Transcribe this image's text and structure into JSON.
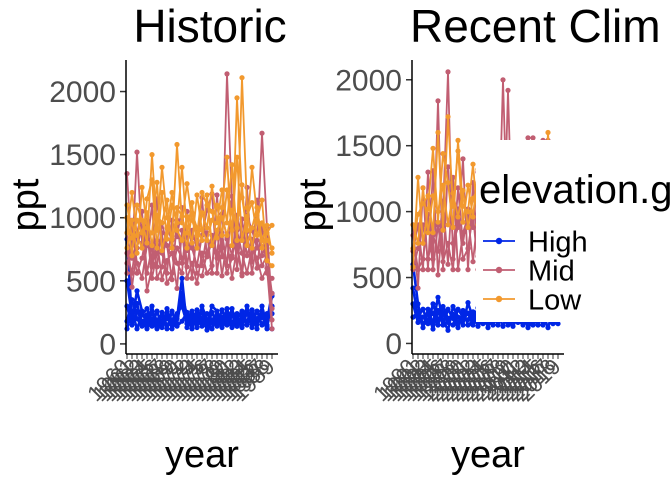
{
  "chart_data": [
    {
      "type": "line",
      "title": "Historic",
      "xlabel": "year",
      "ylabel": "ppt",
      "ylim": [
        -80,
        2250
      ],
      "yticks": [
        0,
        500,
        1000,
        1500,
        2000
      ],
      "x_start": 1960,
      "x_end": 1989,
      "x_tick_step": 1,
      "series": [
        {
          "group": "High",
          "values": [
            830,
            180,
            420,
            260,
            150,
            300,
            120,
            180,
            240,
            120,
            200,
            520,
            130,
            180,
            160,
            260,
            110,
            170,
            200,
            130,
            230,
            170,
            240,
            130,
            250,
            130,
            200,
            260,
            150,
            380
          ]
        },
        {
          "group": "High",
          "values": [
            500,
            220,
            320,
            160,
            230,
            140,
            260,
            140,
            200,
            180,
            160,
            400,
            220,
            120,
            230,
            180,
            140,
            250,
            160,
            210,
            150,
            280,
            140,
            190,
            260,
            190,
            160,
            210,
            180,
            400
          ]
        },
        {
          "group": "High",
          "values": [
            300,
            150,
            260,
            180,
            120,
            200,
            160,
            220,
            150,
            190,
            240,
            300,
            160,
            220,
            130,
            300,
            190,
            120,
            230,
            150,
            190,
            130,
            200,
            260,
            150,
            230,
            120,
            300,
            140,
            300
          ]
        },
        {
          "group": "High",
          "values": [
            180,
            350,
            200,
            140,
            190,
            240,
            190,
            130,
            280,
            150,
            220,
            350,
            190,
            260,
            190,
            140,
            240,
            190,
            140,
            270,
            160,
            220,
            180,
            150,
            300,
            160,
            260,
            150,
            240,
            240
          ]
        },
        {
          "group": "High",
          "values": [
            120,
            260,
            120,
            230,
            280,
            160,
            130,
            250,
            120,
            260,
            140,
            180,
            250,
            150,
            270,
            200,
            160,
            300,
            260,
            170,
            280,
            160,
            140,
            220,
            180,
            270,
            190,
            230,
            120,
            120
          ]
        },
        {
          "group": "Mid",
          "values": [
            1350,
            680,
            1520,
            800,
            980,
            640,
            1150,
            720,
            560,
            980,
            850,
            1080,
            610,
            900,
            760,
            1160,
            690,
            810,
            720,
            1030,
            840,
            700,
            1020,
            850,
            1020,
            900,
            760,
            1670,
            920,
            280
          ]
        },
        {
          "group": "Mid",
          "values": [
            720,
            560,
            880,
            1050,
            560,
            770,
            610,
            960,
            780,
            510,
            980,
            640,
            880,
            520,
            900,
            620,
            880,
            560,
            1180,
            690,
            2140,
            1120,
            790,
            560,
            1240,
            650,
            1140,
            700,
            810,
            190
          ]
        },
        {
          "group": "Mid",
          "values": [
            560,
            940,
            640,
            520,
            780,
            1100,
            520,
            610,
            920,
            820,
            640,
            560,
            1050,
            760,
            620,
            860,
            1060,
            1190,
            560,
            880,
            620,
            1170,
            590,
            990,
            700,
            830,
            600,
            940,
            560,
            520
          ]
        },
        {
          "group": "Mid",
          "values": [
            880,
            450,
            760,
            930,
            420,
            610,
            820,
            510,
            660,
            720,
            440,
            900,
            520,
            640,
            480,
            720,
            560,
            620,
            900,
            540,
            830,
            520,
            760,
            540,
            890,
            560,
            820,
            620,
            700,
            400
          ]
        },
        {
          "group": "Mid",
          "values": [
            640,
            780,
            560,
            680,
            900,
            520,
            720,
            880,
            480,
            560,
            760,
            680,
            740,
            840,
            560,
            540,
            720,
            860,
            680,
            760,
            560,
            680,
            900,
            720,
            560,
            760,
            680,
            520,
            600,
            120
          ]
        },
        {
          "group": "Low",
          "values": [
            1000,
            700,
            1100,
            980,
            800,
            1500,
            900,
            1400,
            1000,
            830,
            1580,
            960,
            1270,
            980,
            860,
            1200,
            1100,
            1050,
            840,
            1080,
            1480,
            780,
            1950,
            1160,
            900,
            1400,
            1020,
            760,
            880,
            940
          ]
        },
        {
          "group": "Low",
          "values": [
            880,
            1200,
            860,
            760,
            1150,
            1300,
            760,
            1200,
            830,
            1100,
            960,
            1400,
            880,
            1120,
            760,
            1040,
            920,
            1250,
            960,
            1220,
            960,
            1420,
            820,
            2110,
            1080,
            760,
            980,
            1140,
            660,
            620
          ]
        },
        {
          "group": "Low",
          "values": [
            760,
            980,
            720,
            1240,
            920,
            880,
            1280,
            740,
            920,
            1200,
            900,
            820,
            1010,
            800,
            1180,
            900,
            820,
            980,
            1100,
            860,
            1220,
            900,
            1480,
            820,
            1010,
            1120,
            860,
            960,
            820,
            760
          ]
        },
        {
          "group": "Low",
          "values": [
            1100,
            840,
            980,
            880,
            1040,
            780,
            1020,
            960,
            1140,
            760,
            1080,
            1010,
            760,
            1040,
            920,
            820,
            1180,
            780,
            900,
            1000,
            860,
            1060,
            920,
            1260,
            780,
            920,
            1080,
            820,
            940,
            720
          ]
        }
      ]
    },
    {
      "type": "line",
      "title": "Recent Clim",
      "xlabel": "year",
      "ylabel": "ppt",
      "ylim": [
        -80,
        2150
      ],
      "yticks": [
        0,
        500,
        1000,
        1500,
        2000
      ],
      "x_start": 1990,
      "x_end": 2019,
      "x_tick_step": 1,
      "series": [
        {
          "group": "High",
          "values": [
            600,
            300,
            120,
            260,
            150,
            350,
            180,
            100,
            280,
            200,
            140,
            310,
            190,
            160,
            230,
            120,
            260,
            180,
            200,
            140,
            300,
            160,
            230,
            120,
            170,
            250,
            140,
            200,
            160,
            180
          ]
        },
        {
          "group": "High",
          "values": [
            420,
            200,
            260,
            150,
            300,
            180,
            230,
            160,
            140,
            260,
            200,
            180,
            240,
            130,
            200,
            280,
            160,
            220,
            130,
            240,
            170,
            230,
            150,
            200,
            260,
            140,
            220,
            120,
            240,
            200
          ]
        },
        {
          "group": "High",
          "values": [
            300,
            160,
            200,
            220,
            110,
            250,
            140,
            260,
            190,
            120,
            250,
            140,
            170,
            270,
            150,
            190,
            230,
            140,
            260,
            180,
            130,
            210,
            190,
            160,
            140,
            200,
            170,
            250,
            150,
            210
          ]
        },
        {
          "group": "High",
          "values": [
            200,
            240,
            150,
            180,
            230,
            140,
            280,
            190,
            220,
            160,
            180,
            230,
            140,
            200,
            250,
            160,
            140,
            260,
            200,
            150,
            230,
            180,
            140,
            260,
            190,
            160,
            230,
            180,
            200,
            150
          ]
        },
        {
          "group": "Mid",
          "values": [
            900,
            420,
            1180,
            560,
            1310,
            520,
            980,
            2060,
            640,
            1180,
            760,
            1020,
            880,
            1300,
            620,
            1360,
            980,
            640,
            2000,
            720,
            1240,
            900,
            1380,
            1000,
            1560,
            880,
            1540,
            920,
            1500,
            1000
          ]
        },
        {
          "group": "Mid",
          "values": [
            700,
            900,
            560,
            1300,
            640,
            1840,
            560,
            1340,
            760,
            880,
            1400,
            560,
            1220,
            660,
            1360,
            640,
            820,
            1210,
            560,
            1920,
            640,
            1460,
            560,
            1560,
            720,
            1500,
            640,
            1540,
            720,
            1240
          ]
        },
        {
          "group": "Mid",
          "values": [
            560,
            720,
            900,
            640,
            820,
            700,
            1080,
            600,
            1260,
            560,
            840,
            960,
            620,
            980,
            760,
            560,
            1140,
            780,
            640,
            1040,
            820,
            660,
            1180,
            720,
            1020,
            640,
            880,
            760,
            660,
            560
          ]
        },
        {
          "group": "Mid",
          "values": [
            820,
            560,
            640,
            980,
            560,
            900,
            620,
            760,
            560,
            1020,
            640,
            720,
            980,
            560,
            840,
            900,
            620,
            1000,
            780,
            640,
            900,
            760,
            620,
            880,
            560,
            780,
            940,
            640,
            860,
            620
          ]
        },
        {
          "group": "Low",
          "values": [
            720,
            980,
            1060,
            1120,
            840,
            1600,
            860,
            1720,
            1040,
            1460,
            920,
            1200,
            960,
            1320,
            1080,
            1180,
            880,
            1240,
            1040,
            1340,
            900,
            1280,
            1060,
            1420,
            980,
            1200,
            860,
            1600,
            1040,
            1500
          ]
        },
        {
          "group": "Low",
          "values": [
            580,
            1260,
            760,
            1020,
            1480,
            920,
            1440,
            1220,
            880,
            1540,
            1040,
            1000,
            1360,
            900,
            1100,
            1480,
            960,
            1060,
            1260,
            940,
            1500,
            1020,
            1180,
            1000,
            1360,
            1100,
            980,
            1260,
            900,
            1200
          ]
        },
        {
          "group": "Low",
          "values": [
            900,
            760,
            1180,
            840,
            1120,
            1000,
            1200,
            900,
            1140,
            960,
            1160,
            880,
            1100,
            1180,
            960,
            1040,
            1200,
            920,
            1120,
            1000,
            1080,
            1160,
            940,
            1100,
            1040,
            980,
            1160,
            940,
            1080,
            980
          ]
        }
      ]
    }
  ],
  "legend": {
    "title": "elevation.g",
    "items": [
      {
        "label": "High",
        "color": "#0026e6"
      },
      {
        "label": "Mid",
        "color": "#c15e72"
      },
      {
        "label": "Low",
        "color": "#f2992e"
      }
    ]
  }
}
